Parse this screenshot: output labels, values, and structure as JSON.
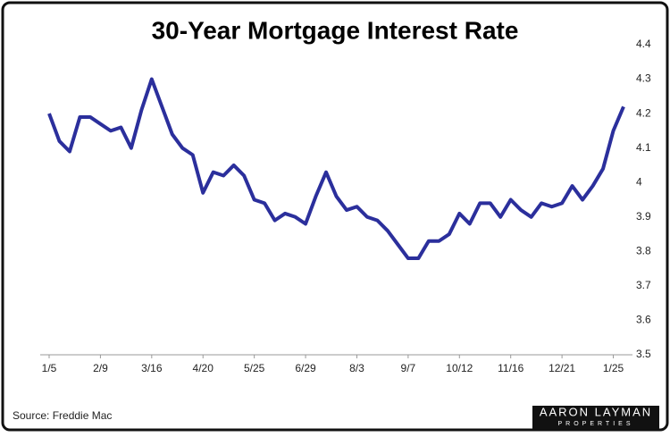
{
  "chart_data": {
    "type": "line",
    "title": "30-Year Mortgage Interest Rate",
    "categories": [
      "1/5",
      null,
      null,
      null,
      null,
      "2/9",
      null,
      null,
      null,
      null,
      "3/16",
      null,
      null,
      null,
      null,
      "4/20",
      null,
      null,
      null,
      null,
      "5/25",
      null,
      null,
      null,
      null,
      "6/29",
      null,
      null,
      null,
      null,
      "8/3",
      null,
      null,
      null,
      null,
      "9/7",
      null,
      null,
      null,
      null,
      "10/12",
      null,
      null,
      null,
      null,
      "11/16",
      null,
      null,
      null,
      null,
      "12/21",
      null,
      null,
      null,
      null,
      "1/25",
      null
    ],
    "series": [
      {
        "name": "30-Year Mortgage Interest Rate",
        "color": "#2b2f9c",
        "values": [
          4.2,
          4.12,
          4.09,
          4.19,
          4.19,
          4.17,
          4.15,
          4.16,
          4.1,
          4.21,
          4.3,
          4.22,
          4.14,
          4.1,
          4.08,
          3.97,
          4.03,
          4.02,
          4.05,
          4.02,
          3.95,
          3.94,
          3.89,
          3.91,
          3.9,
          3.88,
          3.96,
          4.03,
          3.96,
          3.92,
          3.93,
          3.9,
          3.89,
          3.86,
          3.82,
          3.78,
          3.78,
          3.83,
          3.83,
          3.85,
          3.91,
          3.88,
          3.94,
          3.94,
          3.9,
          3.95,
          3.92,
          3.9,
          3.94,
          3.93,
          3.94,
          3.99,
          3.95,
          3.99,
          4.04,
          4.15,
          4.22
        ]
      }
    ],
    "ylim": [
      3.5,
      4.4
    ],
    "yticks": [
      3.5,
      3.6,
      3.7,
      3.8,
      3.9,
      4,
      4.1,
      4.2,
      4.3,
      4.4
    ],
    "y_axis_side": "right",
    "grid": false,
    "source": "Source: Freddie Mac",
    "logo": {
      "name": "AARON LAYMAN",
      "tagline": "PROPERTIES"
    }
  }
}
